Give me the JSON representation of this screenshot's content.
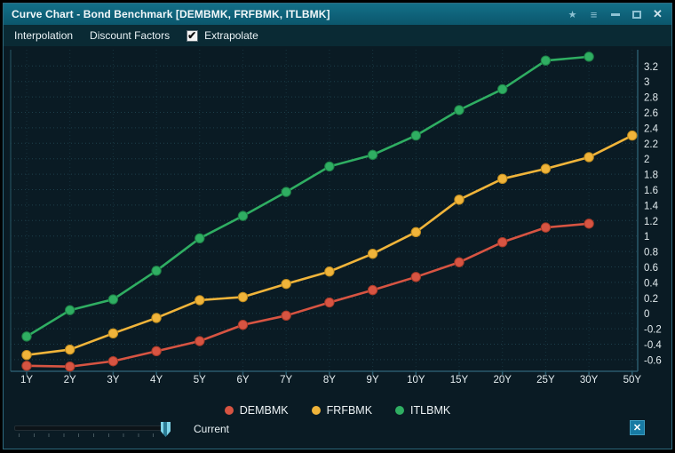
{
  "window": {
    "title": "Curve Chart - Bond Benchmark [DEMBMK, FRFBMK, ITLBMK]",
    "controls": [
      "favorite",
      "window-menu",
      "minimize",
      "maximize",
      "close"
    ]
  },
  "menubar": {
    "items": [
      "Interpolation",
      "Discount Factors"
    ],
    "extrapolate": {
      "label": "Extrapolate",
      "checked": true
    }
  },
  "chart_data": {
    "type": "line",
    "title": "",
    "xlabel": "",
    "ylabel": "",
    "categories": [
      "1Y",
      "2Y",
      "3Y",
      "4Y",
      "5Y",
      "6Y",
      "7Y",
      "8Y",
      "9Y",
      "10Y",
      "15Y",
      "20Y",
      "25Y",
      "30Y",
      "50Y"
    ],
    "series": [
      {
        "name": "DEMBMK",
        "color": "#d75442",
        "edge": "#a83a28",
        "values": [
          -0.68,
          -0.69,
          -0.62,
          -0.49,
          -0.36,
          -0.15,
          -0.03,
          0.14,
          0.3,
          0.47,
          0.66,
          0.92,
          1.11,
          1.16,
          null
        ]
      },
      {
        "name": "FRFBMK",
        "color": "#f0b43a",
        "edge": "#c08c1e",
        "values": [
          -0.54,
          -0.47,
          -0.26,
          -0.06,
          0.17,
          0.21,
          0.38,
          0.54,
          0.77,
          1.05,
          1.47,
          1.74,
          1.87,
          2.02,
          2.3
        ]
      },
      {
        "name": "ITLBMK",
        "color": "#2fae62",
        "edge": "#1d7f46",
        "values": [
          -0.3,
          0.04,
          0.18,
          0.55,
          0.97,
          1.26,
          1.57,
          1.9,
          2.05,
          2.3,
          2.63,
          2.9,
          3.27,
          3.32,
          null
        ]
      }
    ],
    "y_ticks": [
      3.2,
      3,
      2.8,
      2.6,
      2.4,
      2.2,
      2,
      1.8,
      1.6,
      1.4,
      1.2,
      1,
      0.8,
      0.6,
      0.4,
      0.2,
      0,
      -0.2,
      -0.4,
      -0.6
    ],
    "ylim": [
      -0.7,
      3.4
    ],
    "grid": "dotted-horizontal-and-vertical",
    "legend_position": "bottom"
  },
  "footer": {
    "slider_label": "Current"
  }
}
